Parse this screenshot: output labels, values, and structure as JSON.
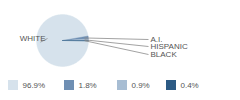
{
  "chart_data": {
    "type": "pie",
    "categories": [
      "WHITE",
      "A.I.",
      "HISPANIC",
      "BLACK"
    ],
    "values": [
      96.9,
      1.8,
      0.9,
      0.4
    ],
    "value_labels": [
      "96.9%",
      "1.8%",
      "0.9%",
      "0.4%"
    ],
    "colors": [
      "#d6e2ec",
      "#6f8fb3",
      "#a7bdd3",
      "#2c5a84"
    ],
    "legend": "bottom"
  }
}
